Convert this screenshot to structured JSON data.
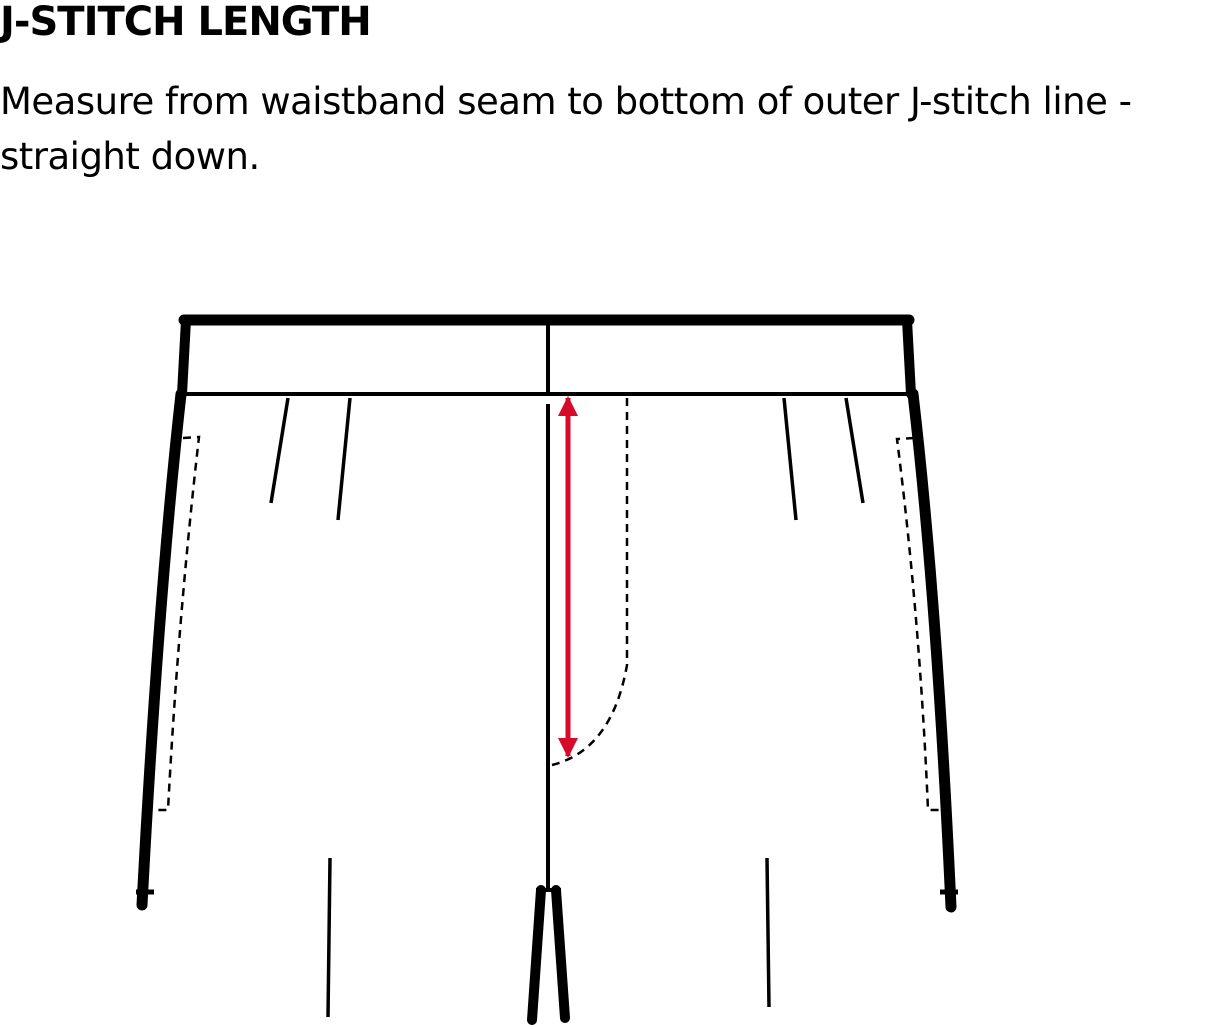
{
  "title": "J-STITCH LENGTH",
  "instruction": "Measure from waistband seam to bottom of outer J-stitch line - straight down.",
  "colors": {
    "outline": "#000000",
    "measure_arrow": "#d70a2a",
    "background": "#ffffff"
  },
  "diagram": {
    "subject": "trouser front with waistband, fly and J-stitch",
    "measurement": "J-stitch length"
  }
}
